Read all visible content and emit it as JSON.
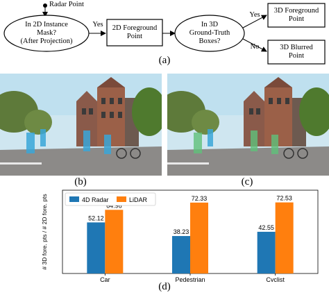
{
  "flowchart": {
    "radar_label": "Radar Point",
    "decision1": "In 2D Instance\nMask?\n(After Projection)",
    "yes1": "Yes",
    "box_fg2d": "2D Foreground\nPoint",
    "decision2": "In 3D\nGround-Truth\nBoxes?",
    "yes2": "Yes",
    "no2": "No",
    "box_fg3d": "3D Foreground\nPoint",
    "box_blur": "3D Blurred\nPoint"
  },
  "captions": {
    "a": "(a)",
    "b": "(b)",
    "c": "(c)",
    "d": "(d)"
  },
  "colors": {
    "radar": "#1f77b4",
    "lidar": "#ff7f0e",
    "sky": "#cfe6f0",
    "highlight": "#3aa6d8"
  },
  "chart_data": {
    "type": "bar",
    "categories": [
      "Car",
      "Pedestrian",
      "Cyclist"
    ],
    "series": [
      {
        "name": "4D Radar",
        "values": [
          52.12,
          38.23,
          42.55
        ]
      },
      {
        "name": "LiDAR",
        "values": [
          64.96,
          72.33,
          72.53
        ]
      }
    ],
    "data_labels": [
      [
        "52.12",
        "64.96"
      ],
      [
        "38.23",
        "72.33"
      ],
      [
        "42.55",
        "72.53"
      ]
    ],
    "ylabel": "# 3D fore. pts / # 2D fore. pts",
    "xlabel": "",
    "title": "",
    "ylim": [
      0,
      85
    ],
    "grid": false,
    "legend": "top-left"
  }
}
